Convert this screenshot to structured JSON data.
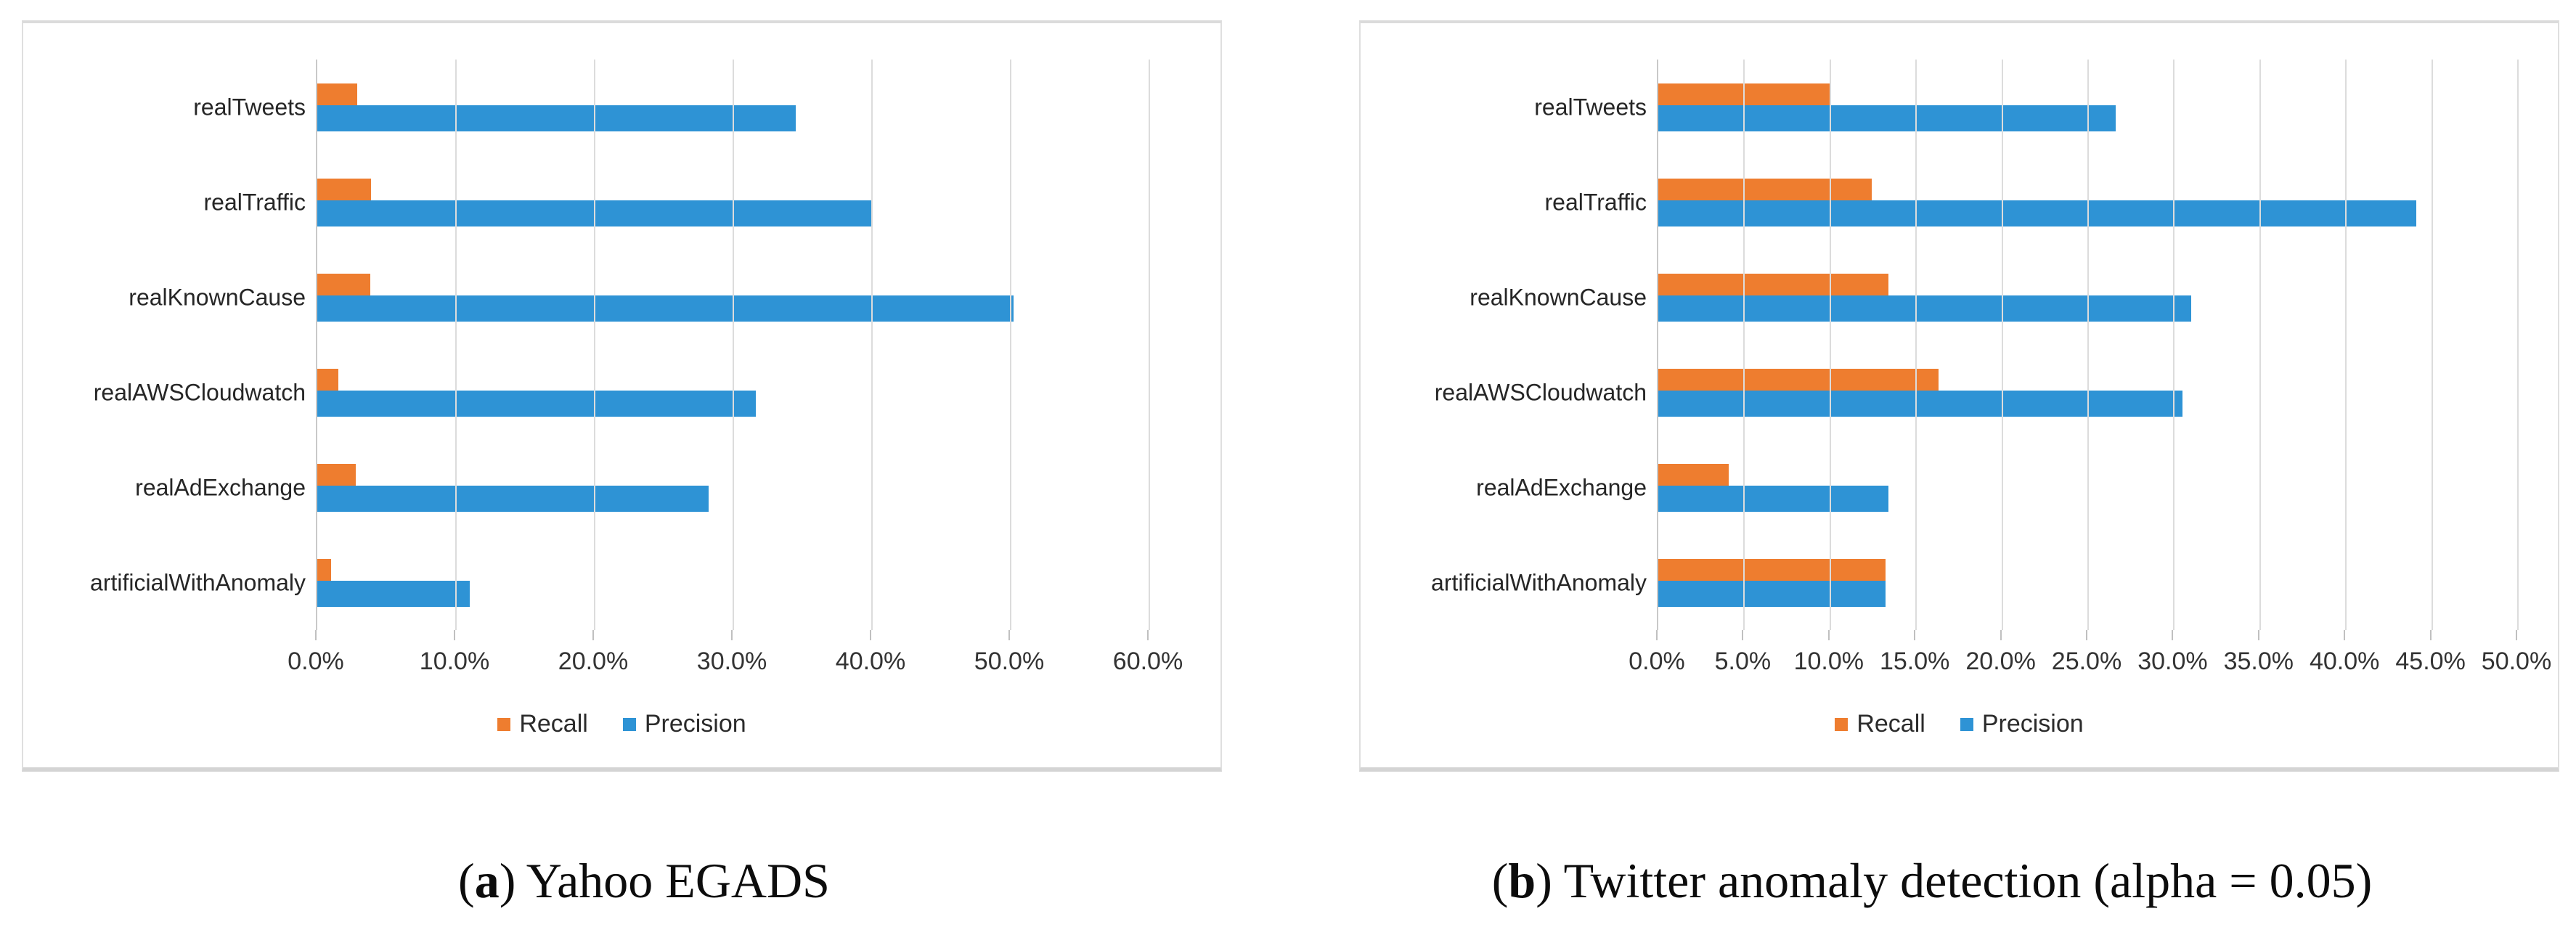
{
  "figure": {
    "captions": [
      {
        "prefix": "(",
        "letter": "a",
        "suffix": ") Yahoo EGADS"
      },
      {
        "prefix": "(",
        "letter": "b",
        "suffix": ") Twitter anomaly detection (alpha = 0.05)"
      }
    ],
    "colors": {
      "recall": "#EE7D2F",
      "precision": "#2E93D5",
      "gridline": "#DCDCDC",
      "axis_line": "#C9C9C9",
      "frame_border": "#DFDFDF",
      "text": "#262626"
    }
  },
  "chart_data": [
    {
      "type": "bar",
      "orientation": "horizontal",
      "title": "(a) Yahoo EGADS",
      "categories": [
        "realTweets",
        "realTraffic",
        "realKnownCause",
        "realAWSCloudwatch",
        "realAdExchange",
        "artificialWithAnomaly"
      ],
      "series": [
        {
          "name": "Recall",
          "color": "#EE7D2F",
          "values": [
            2.9,
            3.9,
            3.8,
            1.5,
            2.8,
            1.0
          ]
        },
        {
          "name": "Precision",
          "color": "#2E93D5",
          "values": [
            34.5,
            40.0,
            50.2,
            31.6,
            28.2,
            11.0
          ]
        }
      ],
      "xlim": [
        0,
        60
      ],
      "x_ticks": [
        "0.0%",
        "10.0%",
        "20.0%",
        "30.0%",
        "40.0%",
        "50.0%",
        "60.0%"
      ],
      "grid": true,
      "legend_position": "bottom"
    },
    {
      "type": "bar",
      "orientation": "horizontal",
      "title": "(b) Twitter anomaly detection (alpha = 0.05)",
      "categories": [
        "realTweets",
        "realTraffic",
        "realKnownCause",
        "realAWSCloudwatch",
        "realAdExchange",
        "artificialWithAnomaly"
      ],
      "series": [
        {
          "name": "Recall",
          "color": "#EE7D2F",
          "values": [
            10.0,
            12.4,
            13.4,
            16.3,
            4.1,
            13.2
          ]
        },
        {
          "name": "Precision",
          "color": "#2E93D5",
          "values": [
            26.6,
            44.1,
            31.0,
            30.5,
            13.4,
            13.2
          ]
        }
      ],
      "xlim": [
        0,
        50
      ],
      "x_ticks": [
        "0.0%",
        "5.0%",
        "10.0%",
        "15.0%",
        "20.0%",
        "25.0%",
        "30.0%",
        "35.0%",
        "40.0%",
        "45.0%",
        "50.0%"
      ],
      "grid": true,
      "legend_position": "bottom"
    }
  ]
}
